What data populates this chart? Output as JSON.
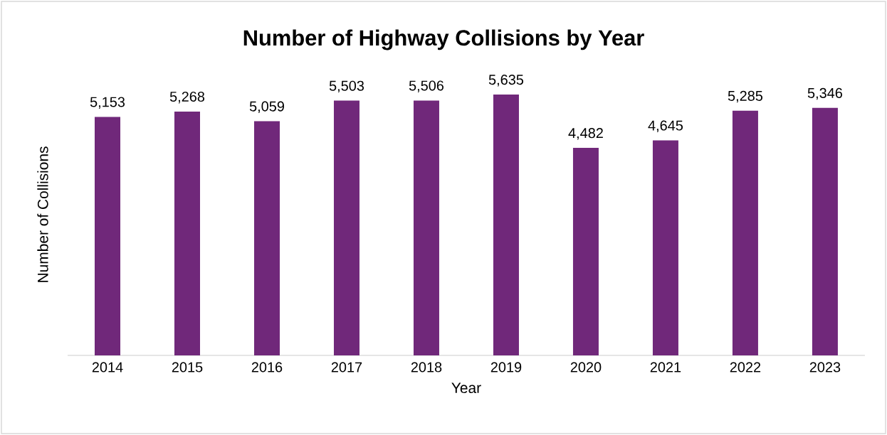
{
  "chart_data": {
    "type": "bar",
    "title": "Number of Highway Collisions by Year",
    "xlabel": "Year",
    "ylabel": "Number of Collisions",
    "categories": [
      "2014",
      "2015",
      "2016",
      "2017",
      "2018",
      "2019",
      "2020",
      "2021",
      "2022",
      "2023"
    ],
    "values": [
      5153,
      5268,
      5059,
      5503,
      5506,
      5635,
      4482,
      4645,
      5285,
      5346
    ],
    "value_labels": [
      "5,153",
      "5,268",
      "5,059",
      "5,503",
      "5,506",
      "5,635",
      "4,482",
      "4,645",
      "5,285",
      "5,346"
    ],
    "color": "#70287a"
  }
}
